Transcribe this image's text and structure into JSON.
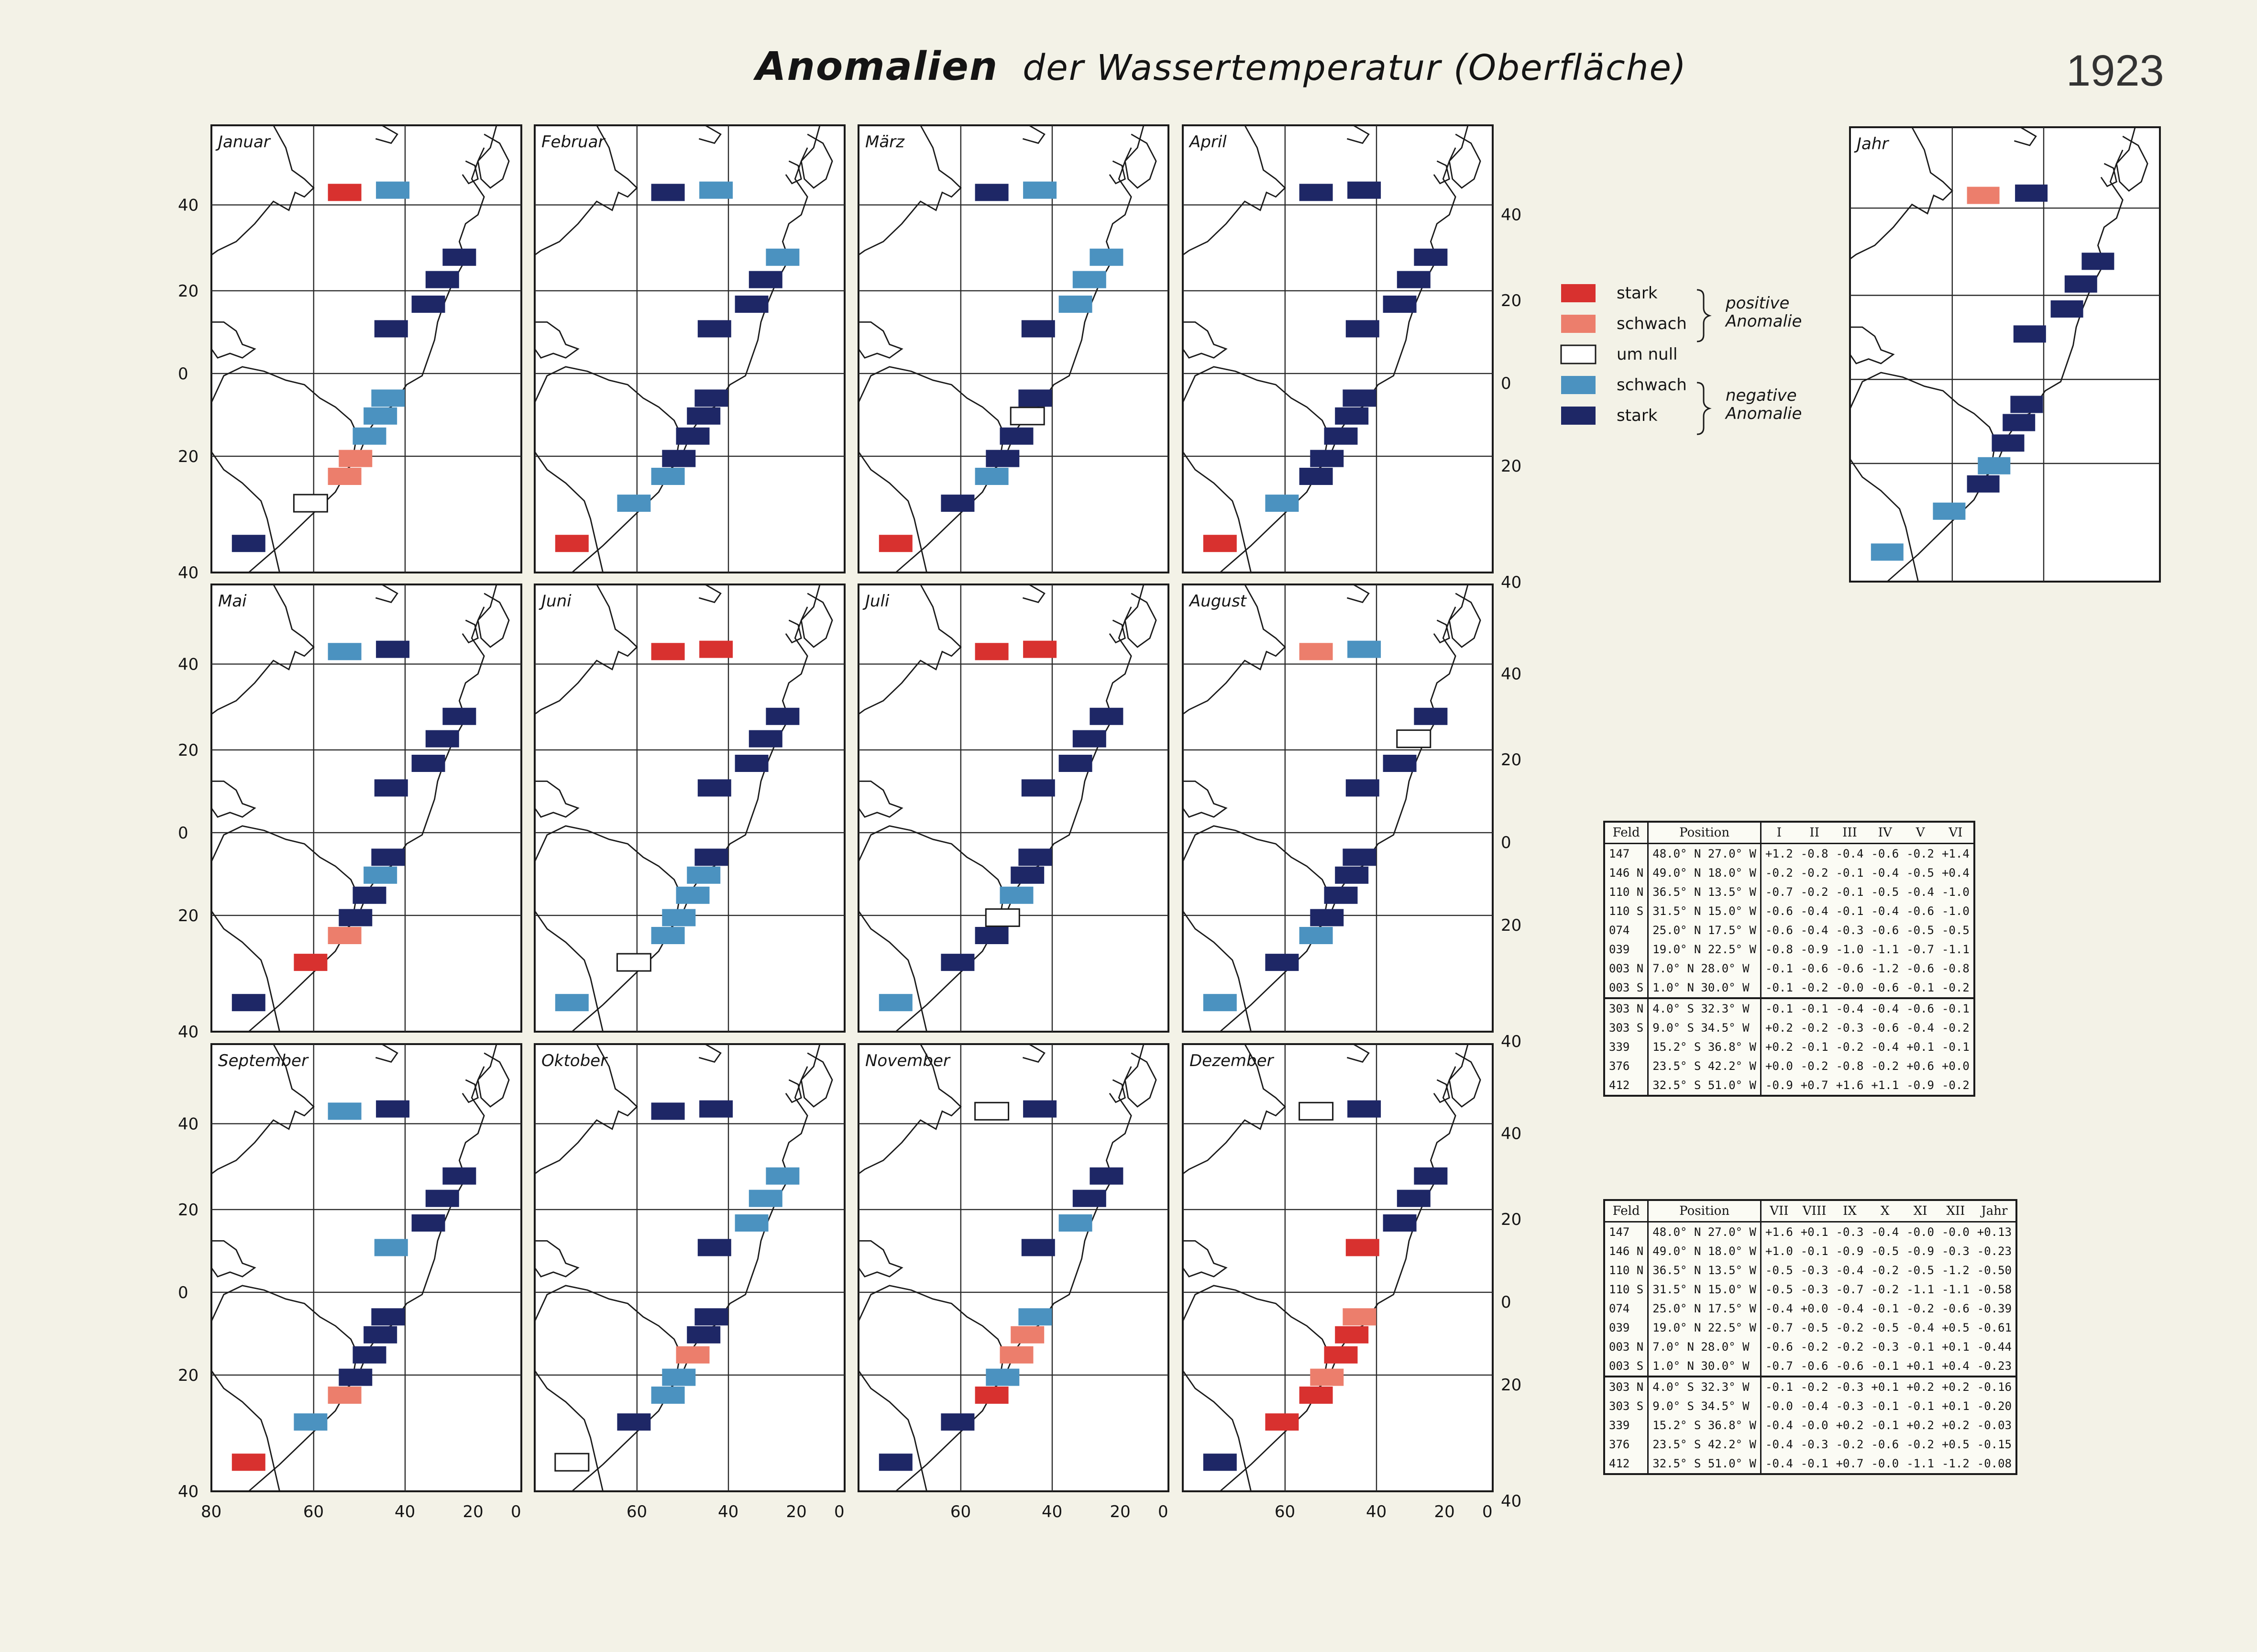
{
  "title": "Anomalien der Wassertemperatur (Oberfläche)",
  "title_word_1": "Anomalien",
  "title_rest": "der Wassertemperatur (Oberfläche)",
  "year": "1923",
  "colors": {
    "stark_pos": "#d8312f",
    "schwach_pos": "#ec7e6c",
    "um_null": "#ffffff",
    "schwach_neg": "#4b92c0",
    "stark_neg": "#1e2766"
  },
  "legend": {
    "items": [
      {
        "key": "stark_pos",
        "label": "stark"
      },
      {
        "key": "schwach_pos",
        "label": "schwach"
      },
      {
        "key": "um_null",
        "label": "um null"
      },
      {
        "key": "schwach_neg",
        "label": "schwach"
      },
      {
        "key": "stark_neg",
        "label": "stark"
      }
    ],
    "positive_1": "positive",
    "positive_2": "Anomalie",
    "negative_1": "negative",
    "negative_2": "Anomalie"
  },
  "axes": {
    "lat_labels": [
      "40",
      "20",
      "0",
      "20",
      "40"
    ],
    "lon_labels": [
      "80",
      "60",
      "40",
      "20",
      "0"
    ],
    "lon_labels_short": [
      "60",
      "40",
      "20",
      "0"
    ]
  },
  "fields": [
    "147",
    "146 N",
    "110 N",
    "110 S",
    "074",
    "039",
    "003 N",
    "003 S",
    "303 N",
    "303 S",
    "339",
    "376",
    "412"
  ],
  "panels": [
    {
      "label": "Januar",
      "classes": [
        "stark_pos",
        "schwach_neg",
        "stark_neg",
        "stark_neg",
        "stark_neg",
        "stark_neg",
        "schwach_neg",
        "schwach_neg",
        "schwach_neg",
        "schwach_pos",
        "schwach_pos",
        "um_null",
        "stark_neg"
      ]
    },
    {
      "label": "Februar",
      "classes": [
        "stark_neg",
        "schwach_neg",
        "schwach_neg",
        "stark_neg",
        "stark_neg",
        "stark_neg",
        "stark_neg",
        "stark_neg",
        "stark_neg",
        "stark_neg",
        "schwach_neg",
        "schwach_neg",
        "stark_pos"
      ]
    },
    {
      "label": "März",
      "classes": [
        "stark_neg",
        "schwach_neg",
        "schwach_neg",
        "schwach_neg",
        "schwach_neg",
        "stark_neg",
        "stark_neg",
        "um_null",
        "stark_neg",
        "stark_neg",
        "schwach_neg",
        "stark_neg",
        "stark_pos"
      ]
    },
    {
      "label": "April",
      "classes": [
        "stark_neg",
        "stark_neg",
        "stark_neg",
        "stark_neg",
        "stark_neg",
        "stark_neg",
        "stark_neg",
        "stark_neg",
        "stark_neg",
        "stark_neg",
        "stark_neg",
        "schwach_neg",
        "stark_pos"
      ]
    },
    {
      "label": "Mai",
      "classes": [
        "schwach_neg",
        "stark_neg",
        "stark_neg",
        "stark_neg",
        "stark_neg",
        "stark_neg",
        "stark_neg",
        "schwach_neg",
        "stark_neg",
        "stark_neg",
        "schwach_pos",
        "stark_pos",
        "stark_neg"
      ]
    },
    {
      "label": "Juni",
      "classes": [
        "stark_pos",
        "stark_pos",
        "stark_neg",
        "stark_neg",
        "stark_neg",
        "stark_neg",
        "stark_neg",
        "schwach_neg",
        "schwach_neg",
        "schwach_neg",
        "schwach_neg",
        "um_null",
        "schwach_neg"
      ]
    },
    {
      "label": "Juli",
      "classes": [
        "stark_pos",
        "stark_pos",
        "stark_neg",
        "stark_neg",
        "stark_neg",
        "stark_neg",
        "stark_neg",
        "stark_neg",
        "schwach_neg",
        "um_null",
        "stark_neg",
        "stark_neg",
        "schwach_neg"
      ]
    },
    {
      "label": "August",
      "classes": [
        "schwach_pos",
        "schwach_neg",
        "stark_neg",
        "um_null",
        "stark_neg",
        "stark_neg",
        "stark_neg",
        "stark_neg",
        "stark_neg",
        "stark_neg",
        "schwach_neg",
        "stark_neg",
        "schwach_neg"
      ]
    },
    {
      "label": "September",
      "classes": [
        "schwach_neg",
        "stark_neg",
        "stark_neg",
        "stark_neg",
        "stark_neg",
        "schwach_neg",
        "stark_neg",
        "stark_neg",
        "stark_neg",
        "stark_neg",
        "schwach_pos",
        "schwach_neg",
        "stark_pos"
      ]
    },
    {
      "label": "Oktober",
      "classes": [
        "stark_neg",
        "stark_neg",
        "schwach_neg",
        "schwach_neg",
        "schwach_neg",
        "stark_neg",
        "stark_neg",
        "stark_neg",
        "schwach_pos",
        "schwach_neg",
        "schwach_neg",
        "stark_neg",
        "um_null"
      ]
    },
    {
      "label": "November",
      "classes": [
        "um_null",
        "stark_neg",
        "stark_neg",
        "stark_neg",
        "schwach_neg",
        "stark_neg",
        "schwach_neg",
        "schwach_pos",
        "schwach_pos",
        "schwach_neg",
        "stark_pos",
        "stark_neg",
        "stark_neg"
      ]
    },
    {
      "label": "Dezember",
      "classes": [
        "um_null",
        "stark_neg",
        "stark_neg",
        "stark_neg",
        "stark_neg",
        "stark_pos",
        "schwach_pos",
        "stark_pos",
        "stark_pos",
        "schwach_pos",
        "stark_pos",
        "stark_pos",
        "stark_neg"
      ]
    },
    {
      "label": "Jahr",
      "classes": [
        "schwach_pos",
        "stark_neg",
        "stark_neg",
        "stark_neg",
        "stark_neg",
        "stark_neg",
        "stark_neg",
        "stark_neg",
        "stark_neg",
        "schwach_neg",
        "stark_neg",
        "schwach_neg",
        "schwach_neg"
      ]
    }
  ],
  "table1": {
    "headers": [
      "Feld",
      "Position",
      "I",
      "II",
      "III",
      "IV",
      "V",
      "VI"
    ],
    "rows": [
      [
        "147",
        "48.0° N 27.0° W",
        "+1.2",
        "-0.8",
        "-0.4",
        "-0.6",
        "-0.2",
        "+1.4"
      ],
      [
        "146 N",
        "49.0° N 18.0° W",
        "-0.2",
        "-0.2",
        "-0.1",
        "-0.4",
        "-0.5",
        "+0.4"
      ],
      [
        "110 N",
        "36.5° N 13.5° W",
        "-0.7",
        "-0.2",
        "-0.1",
        "-0.5",
        "-0.4",
        "-1.0"
      ],
      [
        "110 S",
        "31.5° N 15.0° W",
        "-0.6",
        "-0.4",
        "-0.1",
        "-0.4",
        "-0.6",
        "-1.0"
      ],
      [
        "074",
        "25.0° N 17.5° W",
        "-0.6",
        "-0.4",
        "-0.3",
        "-0.6",
        "-0.5",
        "-0.5"
      ],
      [
        "039",
        "19.0° N 22.5° W",
        "-0.8",
        "-0.9",
        "-1.0",
        "-1.1",
        "-0.7",
        "-1.1"
      ],
      [
        "003 N",
        "7.0° N 28.0° W",
        "-0.1",
        "-0.6",
        "-0.6",
        "-1.2",
        "-0.6",
        "-0.8"
      ],
      [
        "003 S",
        "1.0° N 30.0° W",
        "-0.1",
        "-0.2",
        "-0.0",
        "-0.6",
        "-0.1",
        "-0.2"
      ],
      [
        "303 N",
        "4.0° S 32.3° W",
        "-0.1",
        "-0.1",
        "-0.4",
        "-0.4",
        "-0.6",
        "-0.1"
      ],
      [
        "303 S",
        "9.0° S 34.5° W",
        "+0.2",
        "-0.2",
        "-0.3",
        "-0.6",
        "-0.4",
        "-0.2"
      ],
      [
        "339",
        "15.2° S 36.8° W",
        "+0.2",
        "-0.1",
        "-0.2",
        "-0.4",
        "+0.1",
        "-0.1"
      ],
      [
        "376",
        "23.5° S 42.2° W",
        "+0.0",
        "-0.2",
        "-0.8",
        "-0.2",
        "+0.6",
        "+0.0"
      ],
      [
        "412",
        "32.5° S 51.0° W",
        "-0.9",
        "+0.7",
        "+1.6",
        "+1.1",
        "-0.9",
        "-0.2"
      ]
    ]
  },
  "table2": {
    "headers": [
      "Feld",
      "Position",
      "VII",
      "VIII",
      "IX",
      "X",
      "XI",
      "XII",
      "Jahr"
    ],
    "rows": [
      [
        "147",
        "48.0° N 27.0° W",
        "+1.6",
        "+0.1",
        "-0.3",
        "-0.4",
        "-0.0",
        "-0.0",
        "+0.13"
      ],
      [
        "146 N",
        "49.0° N 18.0° W",
        "+1.0",
        "-0.1",
        "-0.9",
        "-0.5",
        "-0.9",
        "-0.3",
        "-0.23"
      ],
      [
        "110 N",
        "36.5° N 13.5° W",
        "-0.5",
        "-0.3",
        "-0.4",
        "-0.2",
        "-0.5",
        "-1.2",
        "-0.50"
      ],
      [
        "110 S",
        "31.5° N 15.0° W",
        "-0.5",
        "-0.3",
        "-0.7",
        "-0.2",
        "-1.1",
        "-1.1",
        "-0.58"
      ],
      [
        "074",
        "25.0° N 17.5° W",
        "-0.4",
        "+0.0",
        "-0.4",
        "-0.1",
        "-0.2",
        "-0.6",
        "-0.39"
      ],
      [
        "039",
        "19.0° N 22.5° W",
        "-0.7",
        "-0.5",
        "-0.2",
        "-0.5",
        "-0.4",
        "+0.5",
        "-0.61"
      ],
      [
        "003 N",
        "7.0° N 28.0° W",
        "-0.6",
        "-0.2",
        "-0.2",
        "-0.3",
        "-0.1",
        "+0.1",
        "-0.44"
      ],
      [
        "003 S",
        "1.0° N 30.0° W",
        "-0.7",
        "-0.6",
        "-0.6",
        "-0.1",
        "+0.1",
        "+0.4",
        "-0.23"
      ],
      [
        "303 N",
        "4.0° S 32.3° W",
        "-0.1",
        "-0.2",
        "-0.3",
        "+0.1",
        "+0.2",
        "+0.2",
        "-0.16"
      ],
      [
        "303 S",
        "9.0° S 34.5° W",
        "-0.0",
        "-0.4",
        "-0.3",
        "-0.1",
        "-0.1",
        "+0.1",
        "-0.20"
      ],
      [
        "339",
        "15.2° S 36.8° W",
        "-0.4",
        "-0.0",
        "+0.2",
        "-0.1",
        "+0.2",
        "+0.2",
        "-0.03"
      ],
      [
        "376",
        "23.5° S 42.2° W",
        "-0.4",
        "-0.3",
        "-0.2",
        "-0.6",
        "-0.2",
        "+0.5",
        "-0.15"
      ],
      [
        "412",
        "32.5° S 51.0° W",
        "-0.4",
        "-0.1",
        "+0.7",
        "-0.0",
        "-1.1",
        "-1.2",
        "-0.08"
      ]
    ]
  }
}
